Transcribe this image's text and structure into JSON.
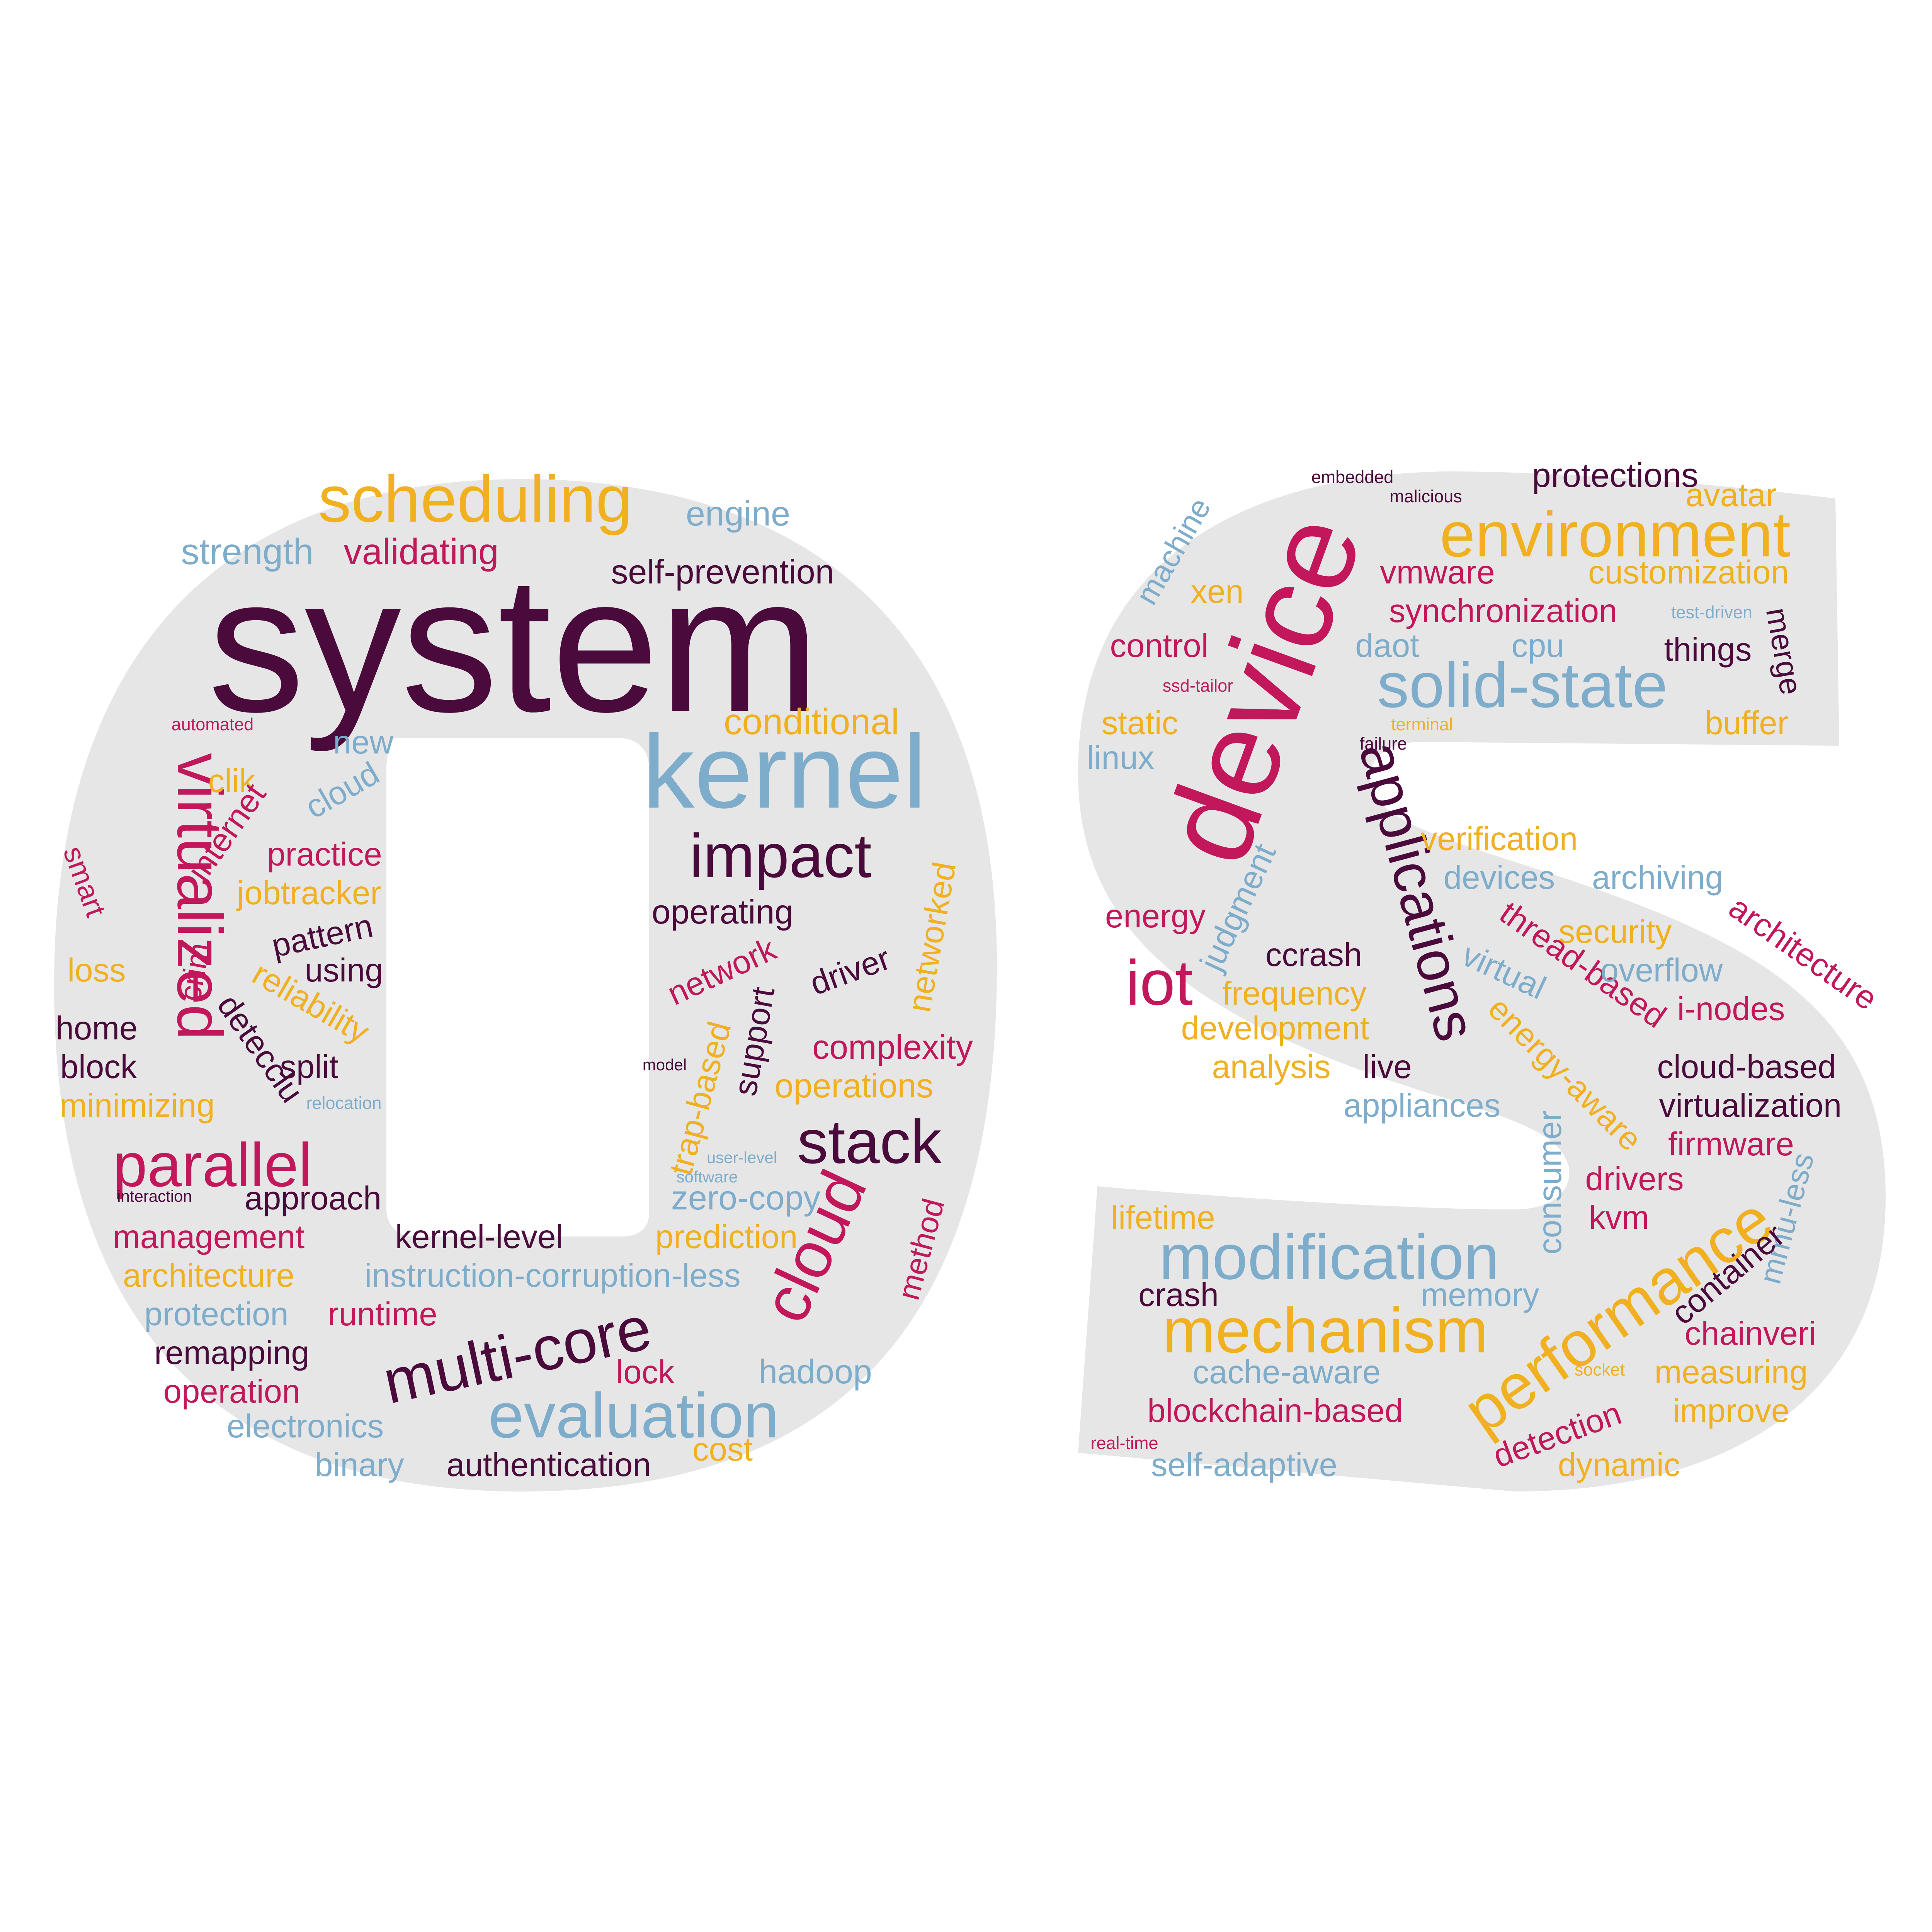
{
  "colors": {
    "background": "#ffffff",
    "shape": "#e6e6e6",
    "plum": "#4a0b3c",
    "crimson": "#c2185b",
    "blue": "#7eaccb",
    "gold": "#f0b020"
  },
  "words": [
    {
      "text": "system",
      "color": "plum"
    },
    {
      "text": "scheduling",
      "color": "gold"
    },
    {
      "text": "engine",
      "color": "blue"
    },
    {
      "text": "strength",
      "color": "blue"
    },
    {
      "text": "validating",
      "color": "crimson"
    },
    {
      "text": "self-prevention",
      "color": "plum"
    },
    {
      "text": "kernel",
      "color": "blue"
    },
    {
      "text": "conditional",
      "color": "gold"
    },
    {
      "text": "impact",
      "color": "plum"
    },
    {
      "text": "operating",
      "color": "plum"
    },
    {
      "text": "automated",
      "color": "crimson"
    },
    {
      "text": "new",
      "color": "blue"
    },
    {
      "text": "virtualized",
      "color": "crimson"
    },
    {
      "text": "cloud",
      "color": "blue"
    },
    {
      "text": "clik",
      "color": "gold"
    },
    {
      "text": "internet",
      "color": "crimson"
    },
    {
      "text": "practice",
      "color": "crimson"
    },
    {
      "text": "jobtracker",
      "color": "gold"
    },
    {
      "text": "smart",
      "color": "crimson"
    },
    {
      "text": "pattern",
      "color": "plum"
    },
    {
      "text": "using",
      "color": "plum"
    },
    {
      "text": "loss",
      "color": "gold"
    },
    {
      "text": "crim",
      "color": "crimson"
    },
    {
      "text": "reliability",
      "color": "gold"
    },
    {
      "text": "home",
      "color": "plum"
    },
    {
      "text": "detecclu",
      "color": "plum"
    },
    {
      "text": "block",
      "color": "plum"
    },
    {
      "text": "split",
      "color": "plum"
    },
    {
      "text": "minimizing",
      "color": "gold"
    },
    {
      "text": "relocation",
      "color": "blue"
    },
    {
      "text": "network",
      "color": "crimson"
    },
    {
      "text": "driver",
      "color": "plum"
    },
    {
      "text": "networked",
      "color": "gold"
    },
    {
      "text": "support",
      "color": "plum"
    },
    {
      "text": "complexity",
      "color": "crimson"
    },
    {
      "text": "model",
      "color": "plum"
    },
    {
      "text": "trap-based",
      "color": "gold"
    },
    {
      "text": "operations",
      "color": "gold"
    },
    {
      "text": "parallel",
      "color": "crimson"
    },
    {
      "text": "stack",
      "color": "plum"
    },
    {
      "text": "interaction",
      "color": "plum"
    },
    {
      "text": "approach",
      "color": "plum"
    },
    {
      "text": "user-level",
      "color": "blue"
    },
    {
      "text": "software",
      "color": "blue"
    },
    {
      "text": "zero-copy",
      "color": "blue"
    },
    {
      "text": "cloud",
      "color": "crimson"
    },
    {
      "text": "management",
      "color": "crimson"
    },
    {
      "text": "kernel-level",
      "color": "plum"
    },
    {
      "text": "prediction",
      "color": "gold"
    },
    {
      "text": "method",
      "color": "crimson"
    },
    {
      "text": "architecture",
      "color": "gold"
    },
    {
      "text": "instruction-corruption-less",
      "color": "blue"
    },
    {
      "text": "protection",
      "color": "blue"
    },
    {
      "text": "runtime",
      "color": "crimson"
    },
    {
      "text": "multi-core",
      "color": "plum"
    },
    {
      "text": "remapping",
      "color": "plum"
    },
    {
      "text": "operation",
      "color": "crimson"
    },
    {
      "text": "lock",
      "color": "crimson"
    },
    {
      "text": "hadoop",
      "color": "blue"
    },
    {
      "text": "evaluation",
      "color": "blue"
    },
    {
      "text": "electronics",
      "color": "blue"
    },
    {
      "text": "cost",
      "color": "gold"
    },
    {
      "text": "binary",
      "color": "blue"
    },
    {
      "text": "authentication",
      "color": "plum"
    },
    {
      "text": "embedded",
      "color": "plum"
    },
    {
      "text": "malicious",
      "color": "plum"
    },
    {
      "text": "protections",
      "color": "plum"
    },
    {
      "text": "avatar",
      "color": "gold"
    },
    {
      "text": "machine",
      "color": "blue"
    },
    {
      "text": "environment",
      "color": "gold"
    },
    {
      "text": "device",
      "color": "crimson"
    },
    {
      "text": "xen",
      "color": "gold"
    },
    {
      "text": "vmware",
      "color": "crimson"
    },
    {
      "text": "customization",
      "color": "gold"
    },
    {
      "text": "synchronization",
      "color": "crimson"
    },
    {
      "text": "test-driven",
      "color": "blue"
    },
    {
      "text": "control",
      "color": "crimson"
    },
    {
      "text": "daot",
      "color": "blue"
    },
    {
      "text": "cpu",
      "color": "blue"
    },
    {
      "text": "things",
      "color": "plum"
    },
    {
      "text": "merge",
      "color": "plum"
    },
    {
      "text": "ssd-tailor",
      "color": "crimson"
    },
    {
      "text": "solid-state",
      "color": "blue"
    },
    {
      "text": "static",
      "color": "gold"
    },
    {
      "text": "terminal",
      "color": "gold"
    },
    {
      "text": "buffer",
      "color": "gold"
    },
    {
      "text": "failure",
      "color": "plum"
    },
    {
      "text": "linux",
      "color": "blue"
    },
    {
      "text": "applications",
      "color": "plum"
    },
    {
      "text": "verification",
      "color": "gold"
    },
    {
      "text": "judgment",
      "color": "blue"
    },
    {
      "text": "devices",
      "color": "blue"
    },
    {
      "text": "archiving",
      "color": "blue"
    },
    {
      "text": "energy",
      "color": "crimson"
    },
    {
      "text": "thread-based",
      "color": "crimson"
    },
    {
      "text": "security",
      "color": "gold"
    },
    {
      "text": "architecture",
      "color": "crimson"
    },
    {
      "text": "iot",
      "color": "crimson"
    },
    {
      "text": "ccrash",
      "color": "plum"
    },
    {
      "text": "virtual",
      "color": "blue"
    },
    {
      "text": "overflow",
      "color": "blue"
    },
    {
      "text": "frequency",
      "color": "gold"
    },
    {
      "text": "i-nodes",
      "color": "crimson"
    },
    {
      "text": "development",
      "color": "gold"
    },
    {
      "text": "energy-aware",
      "color": "gold"
    },
    {
      "text": "analysis",
      "color": "gold"
    },
    {
      "text": "live",
      "color": "plum"
    },
    {
      "text": "cloud-based",
      "color": "plum"
    },
    {
      "text": "appliances",
      "color": "blue"
    },
    {
      "text": "virtualization",
      "color": "plum"
    },
    {
      "text": "firmware",
      "color": "crimson"
    },
    {
      "text": "consumer",
      "color": "blue"
    },
    {
      "text": "drivers",
      "color": "crimson"
    },
    {
      "text": "mmu-less",
      "color": "blue"
    },
    {
      "text": "lifetime",
      "color": "gold"
    },
    {
      "text": "kvm",
      "color": "crimson"
    },
    {
      "text": "modification",
      "color": "blue"
    },
    {
      "text": "performance",
      "color": "gold"
    },
    {
      "text": "container",
      "color": "plum"
    },
    {
      "text": "crash",
      "color": "plum"
    },
    {
      "text": "memory",
      "color": "blue"
    },
    {
      "text": "mechanism",
      "color": "gold"
    },
    {
      "text": "chainveri",
      "color": "crimson"
    },
    {
      "text": "cache-aware",
      "color": "blue"
    },
    {
      "text": "socket",
      "color": "gold"
    },
    {
      "text": "measuring",
      "color": "gold"
    },
    {
      "text": "blockchain-based",
      "color": "crimson"
    },
    {
      "text": "improve",
      "color": "gold"
    },
    {
      "text": "detection",
      "color": "crimson"
    },
    {
      "text": "real-time",
      "color": "crimson"
    },
    {
      "text": "self-adaptive",
      "color": "blue"
    },
    {
      "text": "dynamic",
      "color": "gold"
    }
  ]
}
